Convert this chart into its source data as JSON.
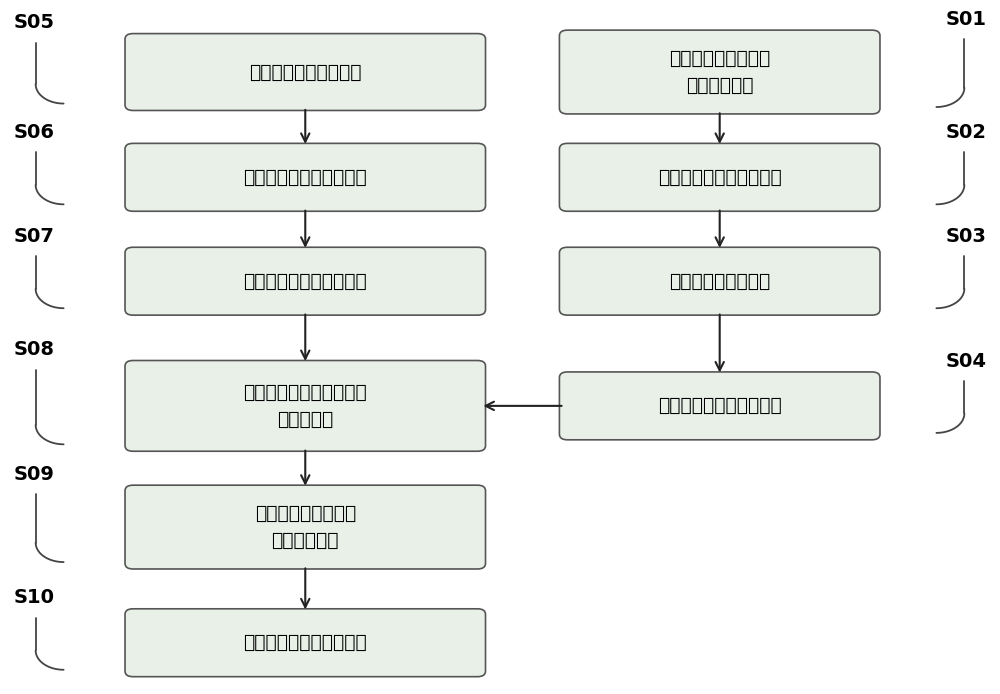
{
  "background_color": "#ffffff",
  "box_fill": "#e8f0e8",
  "box_edge": "#555555",
  "arrow_color": "#222222",
  "text_color": "#000000",
  "fig_width": 10.0,
  "fig_height": 6.94,
  "left_ids": [
    "S05",
    "S06",
    "S07",
    "S08",
    "S09",
    "S10"
  ],
  "right_ids": [
    "S01",
    "S02",
    "S03",
    "S04"
  ],
  "left_labels": [
    "从版图中提取特征图形",
    "对版图图形进行几何分析",
    "统计几何版图信息并存储",
    "将版图信息导入数据库中\n并进行匹配",
    "给出匹配程度结果及\n匹配分析报告",
    "预测版图的光刻解决方案"
  ],
  "right_labels": [
    "输入标准版图集合及\n光刻解决方案",
    "对版图图形进行几何分析",
    "几何图形统计与分类",
    "建立标准版图几何信息库"
  ]
}
